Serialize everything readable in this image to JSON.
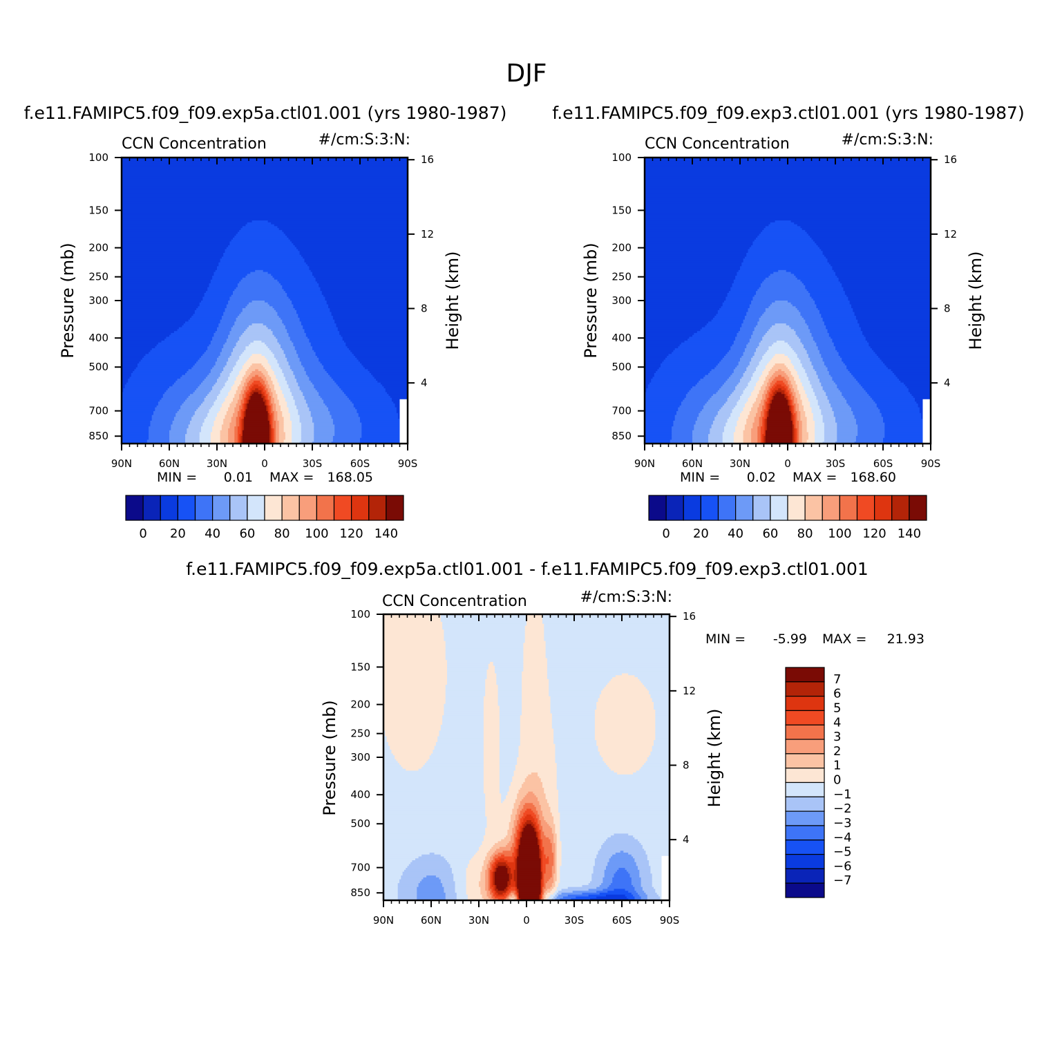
{
  "figure": {
    "title": "DJF"
  },
  "colors": {
    "abs_palette": [
      "#0b0a8a",
      "#0a24b8",
      "#0a3be0",
      "#1752f5",
      "#3e74f7",
      "#6d9af7",
      "#a9c4f7",
      "#d3e5fb",
      "#fde6d4",
      "#fbc3a4",
      "#f89e7b",
      "#f2734b",
      "#f04a23",
      "#de3510",
      "#b32408",
      "#7a0b05"
    ],
    "diff_palette": [
      "#0b0a8a",
      "#0a24b8",
      "#0a3be0",
      "#1752f5",
      "#3e74f7",
      "#6d9af7",
      "#a9c4f7",
      "#d3e5fb",
      "#fde6d4",
      "#fbc3a4",
      "#f89e7b",
      "#f2734b",
      "#f04a23",
      "#de3510",
      "#b32408",
      "#7a0b05"
    ]
  },
  "chart_data": [
    {
      "type": "heatmap",
      "panel": "top-left",
      "title": "f.e11.FAMIPC5.f09_f09.exp5a.ctl01.001 (yrs 1980-1987)",
      "left_label": "CCN Concentration",
      "right_label": "#/cm:S:3:N:",
      "xlabel": "",
      "ylabel": "Pressure (mb)",
      "y2label": "Height (km)",
      "x_ticks": [
        "90N",
        "60N",
        "30N",
        "0",
        "30S",
        "60S",
        "90S"
      ],
      "y_ticks": [
        "100",
        "150",
        "200",
        "250",
        "300",
        "400",
        "500",
        "700",
        "850"
      ],
      "y2_ticks": [
        "16",
        "12",
        "8",
        "4"
      ],
      "min_label": "MIN =",
      "min_value": "0.01",
      "max_label": "MAX =",
      "max_value": "168.05",
      "colorbar_labels": [
        "0",
        "20",
        "40",
        "60",
        "80",
        "100",
        "120",
        "140"
      ],
      "contour_levels": [
        -10,
        0,
        10,
        20,
        30,
        40,
        50,
        60,
        70,
        80,
        90,
        100,
        110,
        120,
        130,
        140
      ],
      "field_peak": 168.05,
      "field_peak_lat": 5,
      "field_peak_pressure": 900,
      "background_value": 5
    },
    {
      "type": "heatmap",
      "panel": "top-right",
      "title": "f.e11.FAMIPC5.f09_f09.exp3.ctl01.001 (yrs 1980-1987)",
      "left_label": "CCN Concentration",
      "right_label": "#/cm:S:3:N:",
      "xlabel": "",
      "ylabel": "Pressure (mb)",
      "y2label": "Height (km)",
      "x_ticks": [
        "90N",
        "60N",
        "30N",
        "0",
        "30S",
        "60S",
        "90S"
      ],
      "y_ticks": [
        "100",
        "150",
        "200",
        "250",
        "300",
        "400",
        "500",
        "700",
        "850"
      ],
      "y2_ticks": [
        "16",
        "12",
        "8",
        "4"
      ],
      "min_label": "MIN =",
      "min_value": "0.02",
      "max_label": "MAX =",
      "max_value": "168.60",
      "colorbar_labels": [
        "0",
        "20",
        "40",
        "60",
        "80",
        "100",
        "120",
        "140"
      ],
      "contour_levels": [
        -10,
        0,
        10,
        20,
        30,
        40,
        50,
        60,
        70,
        80,
        90,
        100,
        110,
        120,
        130,
        140
      ],
      "field_peak": 168.6,
      "field_peak_lat": 5,
      "field_peak_pressure": 900,
      "background_value": 5
    },
    {
      "type": "heatmap",
      "panel": "bottom",
      "title": "f.e11.FAMIPC5.f09_f09.exp5a.ctl01.001 - f.e11.FAMIPC5.f09_f09.exp3.ctl01.001",
      "left_label": "CCN Concentration",
      "right_label": "#/cm:S:3:N:",
      "xlabel": "",
      "ylabel": "Pressure (mb)",
      "y2label": "Height (km)",
      "x_ticks": [
        "90N",
        "60N",
        "30N",
        "0",
        "30S",
        "60S",
        "90S"
      ],
      "y_ticks": [
        "100",
        "150",
        "200",
        "250",
        "300",
        "400",
        "500",
        "700",
        "850"
      ],
      "y2_ticks": [
        "16",
        "12",
        "8",
        "4"
      ],
      "min_label": "MIN =",
      "min_value": "-5.99",
      "max_label": "MAX =",
      "max_value": "21.93",
      "colorbar_labels": [
        "7",
        "6",
        "5",
        "4",
        "3",
        "2",
        "1",
        "0",
        "-1",
        "-2",
        "-3",
        "-4",
        "-5",
        "-6",
        "-7"
      ],
      "contour_levels": [
        -7,
        -6,
        -5,
        -4,
        -3,
        -2,
        -1,
        0,
        1,
        2,
        3,
        4,
        5,
        6,
        7
      ],
      "field_peak": 21.93,
      "field_min": -5.99
    }
  ]
}
